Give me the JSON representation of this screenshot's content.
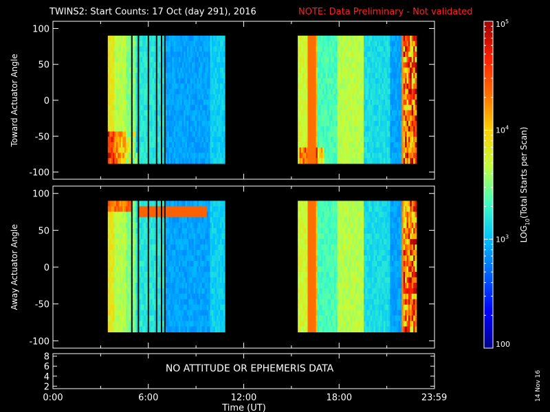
{
  "title": {
    "main": "TWINS2: Start Counts: 17 Oct (day 291), 2016",
    "note": "NOTE: Data Preliminary - Not validated",
    "note_color": "#ff2020"
  },
  "plot_date": "14 Nov 16",
  "colors": {
    "background": "#000000",
    "axis": "#ffffff",
    "text": "#ffffff",
    "note": "#ff2020"
  },
  "chart_data": [
    {
      "type": "heatmap",
      "panel": "toward",
      "ylabel": "Toward Actuator Angle",
      "ylim": [
        -110,
        110
      ],
      "yticks": [
        "100",
        "50",
        "0",
        "-50",
        "-100"
      ],
      "ytick_values": [
        100,
        50,
        0,
        -50,
        -100
      ],
      "xlim": [
        0,
        24
      ],
      "data_blocks": [
        {
          "start_hour": 3.45,
          "end_hour": 10.8
        },
        {
          "start_hour": 15.4,
          "end_hour": 22.8
        }
      ],
      "angle_range": [
        -88,
        90
      ]
    },
    {
      "type": "heatmap",
      "panel": "away",
      "ylabel": "Away Actuator Angle",
      "ylim": [
        -110,
        110
      ],
      "yticks": [
        "100",
        "50",
        "0",
        "-50",
        "-100"
      ],
      "ytick_values": [
        100,
        50,
        0,
        -50,
        -100
      ],
      "xlim": [
        0,
        24
      ],
      "data_blocks": [
        {
          "start_hour": 3.45,
          "end_hour": 10.8
        },
        {
          "start_hour": 15.4,
          "end_hour": 22.8
        }
      ],
      "angle_range": [
        -88,
        90
      ]
    },
    {
      "type": "line",
      "panel": "ephemeris",
      "message": "NO ATTITUDE OR EPHEMERIS DATA",
      "ylim": [
        1.5,
        8.5
      ],
      "yticks": [
        "8",
        "6",
        "4",
        "2"
      ],
      "ytick_values": [
        8,
        6,
        4,
        2
      ],
      "xlim": [
        0,
        24
      ],
      "xticks": [
        "0:00",
        "6:00",
        "12:00",
        "18:00",
        "23:59"
      ],
      "xtick_values": [
        0,
        6,
        12,
        18,
        23.983
      ],
      "xlabel": "Time (UT)"
    }
  ],
  "colorbar": {
    "label": "LOG10(Total Starts per Scan)",
    "label_prefix": "LOG",
    "label_sub": "10",
    "label_suffix": "(Total Starts per Scan)",
    "scale": "log",
    "range": [
      100,
      100000
    ],
    "ticks": [
      {
        "value": 100000,
        "base": "10",
        "exp": "5"
      },
      {
        "value": 10000,
        "base": "10",
        "exp": "4"
      },
      {
        "value": 1000,
        "base": "10",
        "exp": "3"
      },
      {
        "value": 100,
        "base": "100",
        "exp": ""
      }
    ],
    "colormap": [
      "#00008f",
      "#0000ff",
      "#0060ff",
      "#00c0ff",
      "#40ffbf",
      "#c0ff40",
      "#ffd000",
      "#ff7000",
      "#ff2000",
      "#a00000"
    ]
  }
}
